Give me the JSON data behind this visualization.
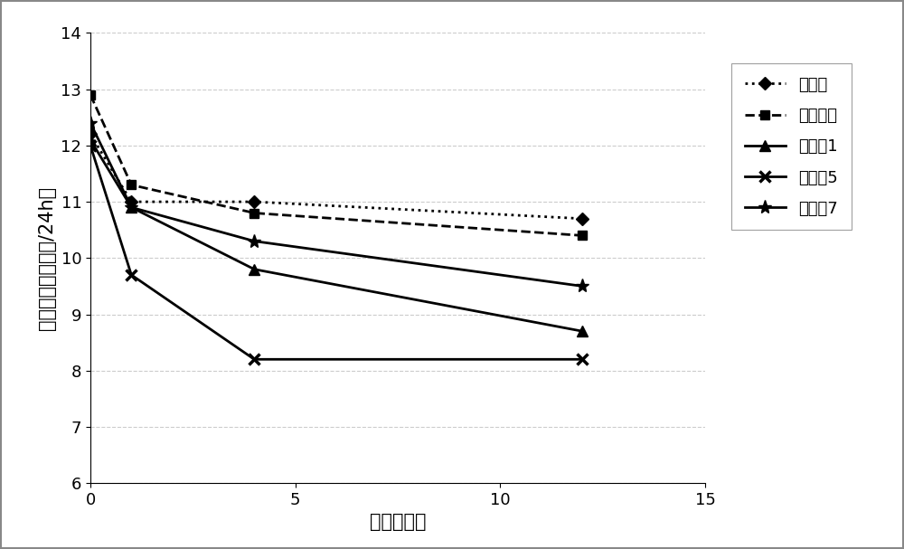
{
  "title": "",
  "xlabel": "时间（周）",
  "ylabel": "平均排尿频率（次/24h）",
  "xlim": [
    0,
    15
  ],
  "ylim": [
    6,
    14
  ],
  "yticks": [
    6,
    7,
    8,
    9,
    10,
    11,
    12,
    13,
    14
  ],
  "xticks": [
    0,
    5,
    10,
    15
  ],
  "series": [
    {
      "label": "安慰剂",
      "x": [
        0,
        1,
        4,
        12
      ],
      "y": [
        12.2,
        11.0,
        11.0,
        10.7
      ],
      "color": "#000000",
      "linestyle": "dotted",
      "linewidth": 2.0,
      "marker": "D",
      "markersize": 7
    },
    {
      "label": "参比制剂",
      "x": [
        0,
        1,
        4,
        12
      ],
      "y": [
        12.9,
        11.3,
        10.8,
        10.4
      ],
      "color": "#000000",
      "linestyle": "dashed",
      "linewidth": 2.0,
      "marker": "s",
      "markersize": 7
    },
    {
      "label": "实施例1",
      "x": [
        0,
        1,
        4,
        12
      ],
      "y": [
        12.1,
        10.9,
        9.8,
        8.7
      ],
      "color": "#000000",
      "linestyle": "solid",
      "linewidth": 2.0,
      "marker": "^",
      "markersize": 8
    },
    {
      "label": "实施例5",
      "x": [
        0,
        1,
        4,
        12
      ],
      "y": [
        12.0,
        9.7,
        8.2,
        8.2
      ],
      "color": "#000000",
      "linestyle": "solid",
      "linewidth": 2.0,
      "marker": "x",
      "markersize": 9,
      "markeredgewidth": 2.5
    },
    {
      "label": "实施例7",
      "x": [
        0,
        1,
        4,
        12
      ],
      "y": [
        12.4,
        10.9,
        10.3,
        9.5
      ],
      "color": "#000000",
      "linestyle": "solid",
      "linewidth": 2.0,
      "marker": "*",
      "markersize": 11
    }
  ],
  "grid_color": "#aaaaaa",
  "grid_linestyle": "--",
  "grid_alpha": 0.6,
  "background_color": "#ffffff",
  "outer_border_color": "#888888",
  "label_fontsize": 15,
  "tick_fontsize": 13,
  "legend_fontsize": 13
}
